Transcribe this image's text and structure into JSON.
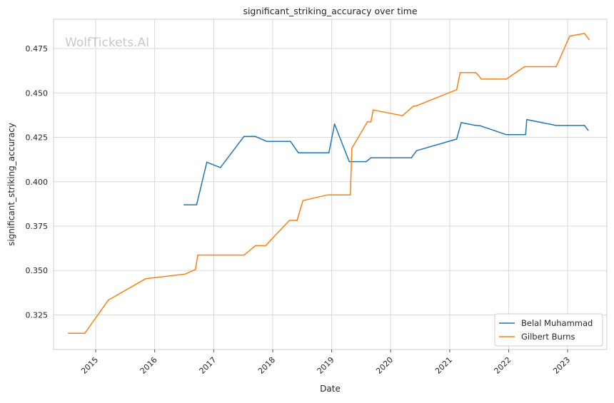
{
  "chart_data": {
    "type": "line",
    "title": "significant_striking_accuracy over time",
    "xlabel": "Date",
    "ylabel": "significant_striking_accuracy",
    "watermark": "WolfTickets.AI",
    "x_ticks": [
      "2015",
      "2016",
      "2017",
      "2018",
      "2019",
      "2020",
      "2021",
      "2022",
      "2023"
    ],
    "y_ticks": [
      "0.325",
      "0.350",
      "0.375",
      "0.400",
      "0.425",
      "0.450",
      "0.475"
    ],
    "xlim": [
      "2014-04-15",
      "2023-09-01"
    ],
    "ylim": [
      0.3055,
      0.4915
    ],
    "grid": true,
    "legend_position": "lower-right",
    "series": [
      {
        "name": "Belal Muhammad",
        "color": "#1f77b4",
        "points": [
          [
            "2016-07-01",
            0.387
          ],
          [
            "2016-09-17",
            0.387
          ],
          [
            "2016-11-19",
            0.411
          ],
          [
            "2017-02-11",
            0.408
          ],
          [
            "2017-07-07",
            0.4255
          ],
          [
            "2017-09-16",
            0.4255
          ],
          [
            "2017-11-25",
            0.4227
          ],
          [
            "2018-04-21",
            0.4227
          ],
          [
            "2018-06-09",
            0.4163
          ],
          [
            "2018-12-15",
            0.4163
          ],
          [
            "2019-01-19",
            0.4325
          ],
          [
            "2019-04-20",
            0.4113
          ],
          [
            "2019-08-03",
            0.4113
          ],
          [
            "2019-09-01",
            0.4135
          ],
          [
            "2020-05-09",
            0.4135
          ],
          [
            "2020-06-10",
            0.4175
          ],
          [
            "2021-02-13",
            0.424
          ],
          [
            "2021-03-13",
            0.4333
          ],
          [
            "2021-06-05",
            0.4318
          ],
          [
            "2021-07-10",
            0.4315
          ],
          [
            "2021-12-18",
            0.4265
          ],
          [
            "2022-04-16",
            0.4265
          ],
          [
            "2022-04-23",
            0.435
          ],
          [
            "2022-10-22",
            0.4317
          ],
          [
            "2023-04-15",
            0.4317
          ],
          [
            "2023-05-08",
            0.429
          ]
        ]
      },
      {
        "name": "Gilbert Burns",
        "color": "#ff7f0e",
        "points": [
          [
            "2014-07-16",
            0.3146
          ],
          [
            "2014-10-25",
            0.3146
          ],
          [
            "2015-03-21",
            0.3334
          ],
          [
            "2015-11-07",
            0.3454
          ],
          [
            "2016-07-08",
            0.348
          ],
          [
            "2016-09-10",
            0.3506
          ],
          [
            "2016-09-24",
            0.3587
          ],
          [
            "2017-07-08",
            0.3587
          ],
          [
            "2017-09-16",
            0.364
          ],
          [
            "2017-11-18",
            0.364
          ],
          [
            "2018-04-14",
            0.3782
          ],
          [
            "2018-06-01",
            0.3782
          ],
          [
            "2018-07-07",
            0.3894
          ],
          [
            "2018-12-08",
            0.3926
          ],
          [
            "2019-04-27",
            0.3926
          ],
          [
            "2019-05-06",
            0.4188
          ],
          [
            "2019-08-10",
            0.4337
          ],
          [
            "2019-09-01",
            0.4337
          ],
          [
            "2019-09-15",
            0.4404
          ],
          [
            "2020-03-14",
            0.4372
          ],
          [
            "2020-05-20",
            0.4425
          ],
          [
            "2020-06-10",
            0.4428
          ],
          [
            "2021-02-13",
            0.4518
          ],
          [
            "2021-03-07",
            0.4615
          ],
          [
            "2021-06-12",
            0.4615
          ],
          [
            "2021-07-17",
            0.4578
          ],
          [
            "2021-12-18",
            0.4578
          ],
          [
            "2022-04-09",
            0.4648
          ],
          [
            "2022-10-22",
            0.4648
          ],
          [
            "2023-01-14",
            0.482
          ],
          [
            "2023-04-15",
            0.4835
          ],
          [
            "2023-05-15",
            0.48
          ]
        ]
      }
    ]
  }
}
